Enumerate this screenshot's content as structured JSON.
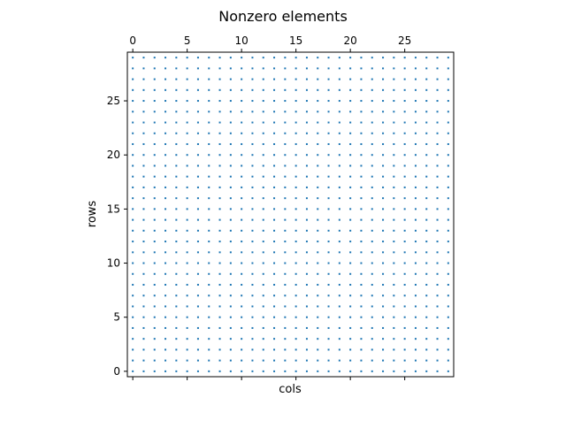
{
  "chart_data": {
    "type": "scatter",
    "title": "Nonzero elements",
    "xlabel": "cols",
    "ylabel": "rows",
    "n_rows": 30,
    "n_cols": 30,
    "xlim": [
      -0.5,
      29.5
    ],
    "ylim": [
      29.5,
      -0.5
    ],
    "x_axis_position": "top",
    "y_inverted": true,
    "grid": false,
    "legend": "none",
    "xticks": [
      0,
      5,
      10,
      15,
      20,
      25
    ],
    "yticks": [
      0,
      5,
      10,
      15,
      20,
      25
    ],
    "xtick_labels": [
      "0",
      "5",
      "10",
      "15",
      "20",
      "25"
    ],
    "ytick_labels": [
      "0",
      "5",
      "10",
      "15",
      "20",
      "25"
    ],
    "pattern": "all entries nonzero",
    "marker_color": "#1f77b4"
  }
}
